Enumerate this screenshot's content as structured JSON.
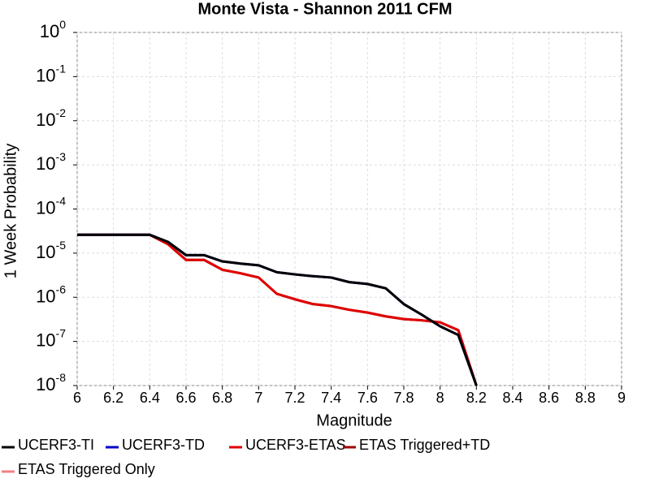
{
  "chart_data": {
    "type": "line",
    "title": "Monte Vista - Shannon 2011 CFM",
    "xlabel": "Magnitude",
    "ylabel": "1 Week Probability",
    "yscale": "log",
    "grid": true,
    "legend": "bottom",
    "x": [
      6.0,
      6.1,
      6.2,
      6.3,
      6.4,
      6.5,
      6.6,
      6.7,
      6.8,
      6.9,
      7.0,
      7.1,
      7.2,
      7.3,
      7.4,
      7.5,
      7.6,
      7.7,
      7.8,
      7.9,
      8.0,
      8.1,
      8.2
    ],
    "series": [
      {
        "name": "UCERF3-TI",
        "color": "#000000",
        "values": [
          2.6e-05,
          2.6e-05,
          2.6e-05,
          2.6e-05,
          2.6e-05,
          1.8e-05,
          9e-06,
          9e-06,
          6.5e-06,
          5.8e-06,
          5.3e-06,
          3.7e-06,
          3.3e-06,
          3e-06,
          2.8e-06,
          2.2e-06,
          2e-06,
          1.6e-06,
          7e-07,
          4e-07,
          2.2e-07,
          1.4e-07,
          1e-08
        ]
      },
      {
        "name": "UCERF3-TD",
        "color": "#0000cc",
        "values": [
          2.6e-05,
          2.6e-05,
          2.6e-05,
          2.6e-05,
          2.6e-05,
          1.8e-05,
          9e-06,
          9e-06,
          6.5e-06,
          5.8e-06,
          5.3e-06,
          3.7e-06,
          3.3e-06,
          3e-06,
          2.8e-06,
          2.2e-06,
          2e-06,
          1.6e-06,
          7e-07,
          4e-07,
          2.2e-07,
          1.4e-07,
          1e-08
        ]
      },
      {
        "name": "UCERF3-ETAS",
        "color": "#e00000",
        "values": [
          2.6e-05,
          2.6e-05,
          2.6e-05,
          2.6e-05,
          2.6e-05,
          1.6e-05,
          7e-06,
          7e-06,
          4.2e-06,
          3.5e-06,
          2.8e-06,
          1.2e-06,
          9e-07,
          7e-07,
          6.3e-07,
          5.2e-07,
          4.5e-07,
          3.7e-07,
          3.2e-07,
          3e-07,
          2.7e-07,
          1.8e-07,
          1e-08
        ]
      },
      {
        "name": "ETAS Triggered+TD",
        "color": "#a00000",
        "values": [
          2.6e-05,
          2.6e-05,
          2.6e-05,
          2.6e-05,
          2.6e-05,
          1.6e-05,
          7e-06,
          7e-06,
          4.2e-06,
          3.5e-06,
          2.8e-06,
          1.2e-06,
          9e-07,
          7e-07,
          6.3e-07,
          5.2e-07,
          4.5e-07,
          3.7e-07,
          3.2e-07,
          3e-07,
          2.7e-07,
          1.8e-07,
          1e-08
        ]
      },
      {
        "name": "ETAS Triggered Only",
        "color": "#f08080",
        "values": [
          null,
          null,
          null,
          null,
          null,
          null,
          null,
          null,
          null,
          null,
          null,
          null,
          null,
          null,
          null,
          null,
          null,
          null,
          null,
          null,
          null,
          null,
          null
        ]
      }
    ],
    "xlim": [
      6,
      9
    ],
    "xticks": [
      6,
      6.2,
      6.4,
      6.6,
      6.8,
      7,
      7.2,
      7.4,
      7.6,
      7.8,
      8,
      8.2,
      8.4,
      8.6,
      8.8,
      9
    ],
    "ylim": [
      1e-08,
      1
    ],
    "yticks": [
      {
        "value": 1e-08,
        "label": "10",
        "exponent": "-8"
      },
      {
        "value": 1e-07,
        "label": "10",
        "exponent": "-7"
      },
      {
        "value": 1e-06,
        "label": "10",
        "exponent": "-6"
      },
      {
        "value": 1e-05,
        "label": "10",
        "exponent": "-5"
      },
      {
        "value": 0.0001,
        "label": "10",
        "exponent": "-4"
      },
      {
        "value": 0.001,
        "label": "10",
        "exponent": "-3"
      },
      {
        "value": 0.01,
        "label": "10",
        "exponent": "-2"
      },
      {
        "value": 0.1,
        "label": "10",
        "exponent": "-1"
      },
      {
        "value": 1,
        "label": "10",
        "exponent": "0"
      }
    ]
  }
}
